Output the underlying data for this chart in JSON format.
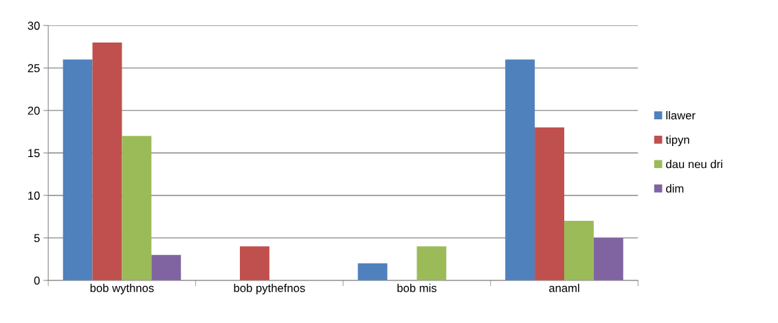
{
  "chart_data": {
    "type": "bar",
    "categories": [
      "bob wythnos",
      "bob pythefnos",
      "bob mis",
      "anaml"
    ],
    "series": [
      {
        "name": "llawer",
        "color": "#4f81bd",
        "values": [
          26,
          0,
          2,
          26
        ]
      },
      {
        "name": "tipyn",
        "color": "#c0504d",
        "values": [
          28,
          4,
          0,
          18
        ]
      },
      {
        "name": "dau neu dri",
        "color": "#9bbb59",
        "values": [
          17,
          0,
          4,
          7
        ]
      },
      {
        "name": "dim",
        "color": "#8064a2",
        "values": [
          3,
          0,
          0,
          5
        ]
      }
    ],
    "ylim": [
      0,
      30
    ],
    "yticks": [
      0,
      5,
      10,
      15,
      20,
      25,
      30
    ],
    "grid": "y",
    "legend": "right"
  }
}
